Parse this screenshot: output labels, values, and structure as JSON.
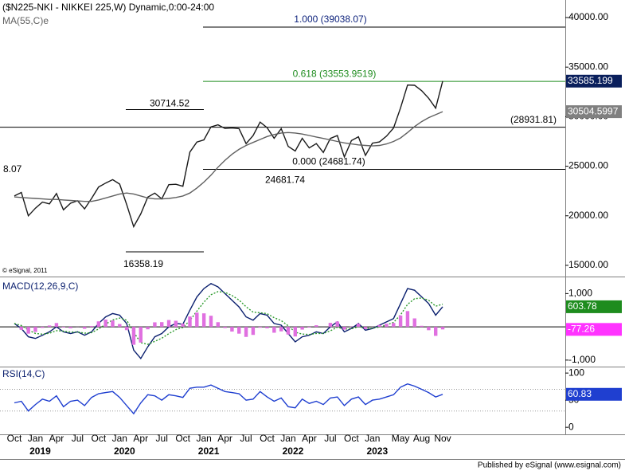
{
  "header": {
    "copyright": "© eSignal, 2011"
  },
  "footer": "Published by eSignal (www.esignal.com)",
  "chart_data": [
    {
      "type": "line",
      "title": "($N225-NKI - NIKKEI 225,W) Dynamic,0:00-24:00",
      "categories": [
        "Oct",
        null,
        null,
        "Jan",
        null,
        null,
        "Apr",
        null,
        null,
        "Jul",
        null,
        null,
        "Oct",
        null,
        null,
        "Jan",
        null,
        null,
        "Apr",
        null,
        null,
        "Jul",
        null,
        null,
        "Oct",
        null,
        null,
        "Jan",
        null,
        null,
        "Apr",
        null,
        null,
        "Jul",
        null,
        null,
        "Oct",
        null,
        null,
        "Jan",
        null,
        null,
        "Apr",
        null,
        null,
        "Jul",
        null,
        null,
        "Oct",
        null,
        null,
        "Jan",
        null,
        null,
        null,
        "May",
        null,
        null,
        "Aug",
        null,
        null,
        "Nov"
      ],
      "years": [
        null,
        null,
        null,
        "2019",
        null,
        null,
        null,
        null,
        null,
        null,
        null,
        null,
        null,
        null,
        null,
        "2020",
        null,
        null,
        null,
        null,
        null,
        null,
        null,
        null,
        null,
        null,
        null,
        "2021",
        null,
        null,
        null,
        null,
        null,
        null,
        null,
        null,
        null,
        null,
        null,
        "2022",
        null,
        null,
        null,
        null,
        null,
        null,
        null,
        null,
        null,
        null,
        null,
        "2023",
        null,
        null,
        null,
        null,
        null,
        null,
        null,
        null,
        null,
        null
      ],
      "ylim": [
        13870,
        41770
      ],
      "yticks": [
        {
          "value": 15000,
          "label": "15000.00"
        },
        {
          "value": 20000,
          "label": "20000.00"
        },
        {
          "value": 25000,
          "label": "25000.00"
        },
        {
          "value": 30000,
          "label": "30000.00"
        },
        {
          "value": 35000,
          "label": "35000.00"
        },
        {
          "value": 40000,
          "label": "40000.00"
        }
      ],
      "series": [
        {
          "color": "#1a1a1a",
          "tag_color": "#0a1f5c",
          "values": [
            22000,
            22350,
            20000,
            20770,
            21380,
            21200,
            22250,
            20600,
            21270,
            21520,
            20700,
            21750,
            22900,
            23300,
            23650,
            23200,
            21140,
            18900,
            20190,
            21880,
            22290,
            21710,
            23140,
            23180,
            22980,
            26430,
            27440,
            27660,
            28970,
            29180,
            28810,
            28860,
            28790,
            27280,
            28090,
            29450,
            28890,
            27820,
            28790,
            27000,
            26530,
            27820,
            26850,
            27280,
            26390,
            27800,
            28090,
            25940,
            27590,
            27970,
            26090,
            27330,
            27450,
            28040,
            28860,
            30890,
            33190,
            33170,
            32620,
            31860,
            30860,
            33585.199
          ]
        },
        {
          "name": "MA(55,C)e",
          "color": "#606060",
          "tag_color": "#808080",
          "values": [
            21900,
            21850,
            21800,
            21750,
            21700,
            21650,
            21650,
            21600,
            21550,
            21500,
            21450,
            21450,
            21600,
            21800,
            22000,
            22200,
            22300,
            22200,
            22000,
            21800,
            21700,
            21700,
            21750,
            21850,
            22000,
            22300,
            22800,
            23400,
            24100,
            24900,
            25600,
            26200,
            26700,
            27100,
            27400,
            27700,
            28000,
            28200,
            28350,
            28400,
            28350,
            28250,
            28100,
            27950,
            27800,
            27650,
            27500,
            27350,
            27250,
            27150,
            27100,
            27050,
            27100,
            27250,
            27500,
            27850,
            28400,
            29000,
            29500,
            29900,
            30200,
            30504.5997
          ]
        }
      ],
      "levels": [
        {
          "value": 39038.07,
          "label": "1.000 (39038.07)",
          "color": "#0a1f7a",
          "line_color": "#000000"
        },
        {
          "value": 33553.9519,
          "label": "0.618 (33553.9519)",
          "color": "#1e8c1e",
          "line_color": "#1e8c1e"
        },
        {
          "value": 28931.81,
          "label": "(28931.81)",
          "color": "#000000",
          "line_color": "#000000"
        },
        {
          "value": 24681.74,
          "label": "0.000 (24681.74)",
          "color": "#000000",
          "line_color": "#000000"
        }
      ],
      "annotations": [
        {
          "value": 30714.52,
          "label": "30714.52"
        },
        {
          "value": 24681.74,
          "label": "24681.74"
        },
        {
          "value": 16358.19,
          "label": "16358.19"
        }
      ],
      "edge_note": "8.07"
    },
    {
      "type": "line",
      "title": "MACD(12,26,9,C)",
      "ylim": [
        -1195,
        1440
      ],
      "yticks": [
        {
          "value": 1000,
          "label": "1,000"
        },
        {
          "value": -1000,
          "label": "-1,000"
        }
      ],
      "series": [
        {
          "type": "line",
          "color": "#0a1f6e",
          "tag_color": "#1e8c1e",
          "values": [
            100,
            -50,
            -300,
            -350,
            -250,
            -150,
            0,
            -150,
            -200,
            -150,
            -250,
            -150,
            100,
            300,
            400,
            350,
            100,
            -700,
            -950,
            -600,
            -300,
            -200,
            0,
            100,
            80,
            500,
            900,
            1150,
            1300,
            1200,
            1000,
            800,
            600,
            300,
            200,
            400,
            350,
            100,
            50,
            -200,
            -450,
            -300,
            -250,
            -150,
            -200,
            0,
            150,
            -150,
            -50,
            100,
            -100,
            -50,
            50,
            150,
            250,
            700,
            1150,
            1100,
            900,
            700,
            350,
            603.78
          ]
        },
        {
          "type": "line",
          "dashed": true,
          "color": "#2e9b2e",
          "values": [
            100,
            40,
            -96,
            -198,
            -219,
            -191,
            -115,
            -129,
            -157,
            -154,
            -192,
            -175,
            -65,
            81,
            209,
            265,
            199,
            -161,
            -477,
            -526,
            -436,
            -342,
            -205,
            -83,
            -18,
            189,
            473,
            744,
            966,
            1060,
            1036,
            942,
            805,
            603,
            442,
            425,
            395,
            277,
            186,
            32,
            -161,
            -217,
            -230,
            -198,
            -199,
            -119,
            -11,
            -67,
            -60,
            4,
            -38,
            -43,
            -6,
            56,
            134,
            360,
            676,
            846,
            868,
            801,
            621,
            681.04
          ]
        },
        {
          "type": "bar",
          "color": "#e070e0",
          "tag_color": "#ff33ff",
          "values": [
            0,
            -90,
            -204,
            -152,
            -31,
            41,
            115,
            -21,
            -43,
            4,
            -58,
            25,
            165,
            219,
            191,
            85,
            -99,
            -539,
            -473,
            -74,
            136,
            142,
            205,
            183,
            98,
            311,
            427,
            406,
            334,
            140,
            -36,
            -142,
            -205,
            -303,
            -242,
            -25,
            -45,
            -177,
            -136,
            -232,
            -289,
            -83,
            -20,
            48,
            -1,
            119,
            161,
            -83,
            10,
            96,
            -62,
            -7,
            56,
            94,
            116,
            340,
            474,
            254,
            32,
            -101,
            -271,
            -77.26
          ]
        }
      ]
    },
    {
      "type": "line",
      "title": "RSI(14,C)",
      "ylim": [
        -13,
        109
      ],
      "yticks": [
        0,
        50,
        100
      ],
      "guide_lines": [
        70,
        30
      ],
      "series": [
        {
          "color": "#1f3fd0",
          "tag_color": "#1f3fd0",
          "values": [
            45,
            48,
            30,
            42,
            52,
            48,
            58,
            38,
            48,
            50,
            40,
            55,
            62,
            64,
            66,
            55,
            40,
            25,
            45,
            60,
            58,
            50,
            60,
            58,
            55,
            72,
            74,
            74,
            78,
            72,
            66,
            64,
            62,
            50,
            52,
            66,
            56,
            48,
            54,
            38,
            36,
            52,
            44,
            48,
            42,
            54,
            56,
            40,
            52,
            56,
            42,
            50,
            52,
            56,
            60,
            74,
            80,
            76,
            70,
            64,
            56,
            60.83
          ]
        }
      ]
    }
  ]
}
